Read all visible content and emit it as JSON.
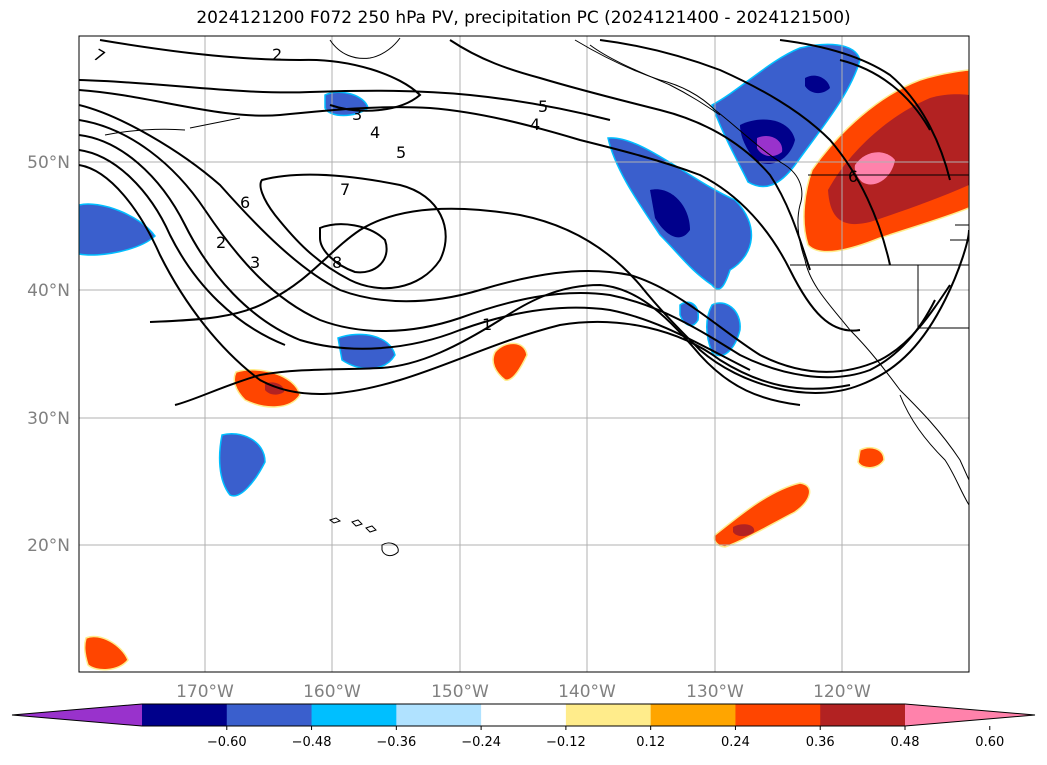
{
  "title": "2024121200 F072 250 hPa PV, precipitation PC (2024121400 - 2024121500)",
  "lat_labels": [
    "50°N",
    "40°N",
    "30°N",
    "20°N"
  ],
  "lon_labels": [
    "170°W",
    "160°W",
    "150°W",
    "140°W",
    "130°W",
    "120°W"
  ],
  "colorbar": {
    "ticks": [
      "−0.60",
      "−0.48",
      "−0.36",
      "−0.24",
      "−0.12",
      "0.12",
      "0.24",
      "0.36",
      "0.48",
      "0.60"
    ],
    "colors": [
      "#9932cc",
      "#00008b",
      "#3a5fcd",
      "#00bfff",
      "#b0e2ff",
      "#ffffff",
      "#ffec8b",
      "#ffa500",
      "#ff4500",
      "#b22222",
      "#ff82ab"
    ]
  },
  "contour_labels": [
    "7",
    "2",
    "3",
    "4",
    "5",
    "6",
    "7",
    "8",
    "2",
    "3",
    "1",
    "5",
    "4",
    "6"
  ]
}
